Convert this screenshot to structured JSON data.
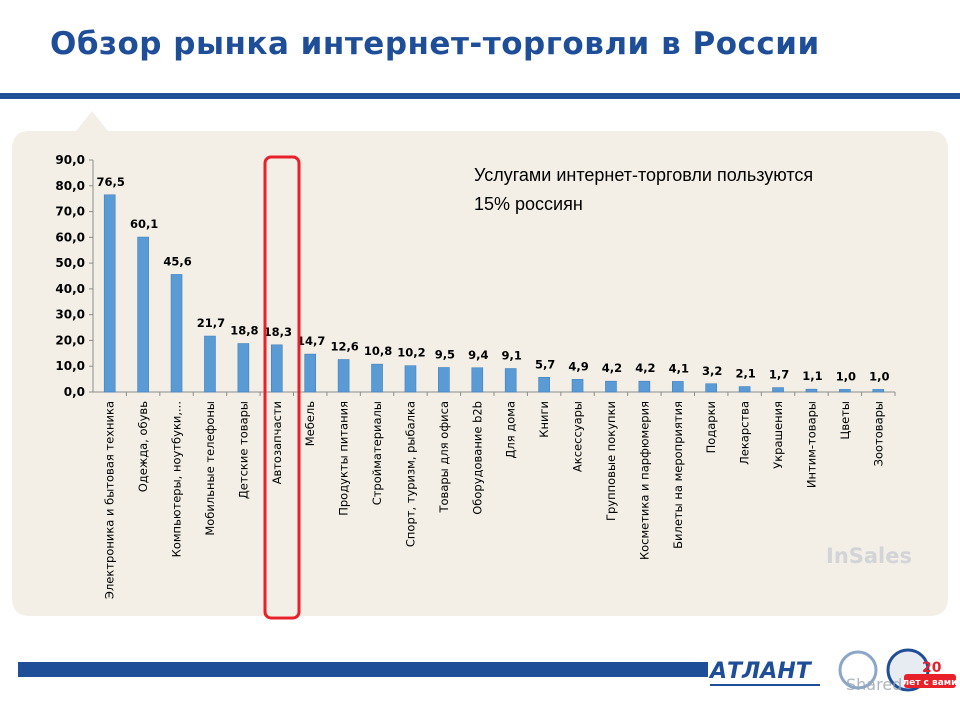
{
  "header": {
    "title": "Обзор рынка интернет-торговли в России"
  },
  "annotation": {
    "line1": "Услугами интернет-торговли пользуются",
    "line2": "15% россиян"
  },
  "watermark": {
    "text": "InSales"
  },
  "footer": {
    "logo_text": "АТЛАНТ",
    "badge_number": "20",
    "badge_text": "лет с вами",
    "shared_text": "Shared"
  },
  "colors": {
    "accent": "#1f4e99",
    "bar": "#5b9bd5",
    "panel": "#f3efe6",
    "highlight": "#e8202a"
  },
  "chart_data": {
    "type": "bar",
    "categories": [
      "Электроника и бытовая техника",
      "Одежда, обувь",
      "Компьютеры, ноутбуки,...",
      "Мобильные телефоны",
      "Детские товары",
      "Автозапчасти",
      "Мебель",
      "Продукты питания",
      "Стройматериалы",
      "Спорт, туризм, рыбалка",
      "Товары для офиса",
      "Оборудование b2b",
      "Для дома",
      "Книги",
      "Аксессуары",
      "Групповые покупки",
      "Косметика и парфюмерия",
      "Билеты на мероприятия",
      "Подарки",
      "Лекарства",
      "Украшения",
      "Интим-товары",
      "Цветы",
      "Зоотовары"
    ],
    "values": [
      76.5,
      60.1,
      45.6,
      21.7,
      18.8,
      18.3,
      14.7,
      12.6,
      10.8,
      10.2,
      9.5,
      9.4,
      9.1,
      5.7,
      4.9,
      4.2,
      4.2,
      4.1,
      3.2,
      2.1,
      1.7,
      1.1,
      1.0,
      1.0
    ],
    "value_labels": [
      "76,5",
      "60,1",
      "45,6",
      "21,7",
      "18,8",
      "18,3",
      "14,7",
      "12,6",
      "10,8",
      "10,2",
      "9,5",
      "9,4",
      "9,1",
      "5,7",
      "4,9",
      "4,2",
      "4,2",
      "4,1",
      "3,2",
      "2,1",
      "1,7",
      "1,1",
      "1,0",
      "1,0"
    ],
    "y_ticks": [
      "0,0",
      "10,0",
      "20,0",
      "30,0",
      "40,0",
      "50,0",
      "60,0",
      "70,0",
      "80,0",
      "90,0"
    ],
    "ylim": [
      0,
      90
    ],
    "highlighted_category": "Автозапчасти",
    "grid": false,
    "legend": "none"
  }
}
